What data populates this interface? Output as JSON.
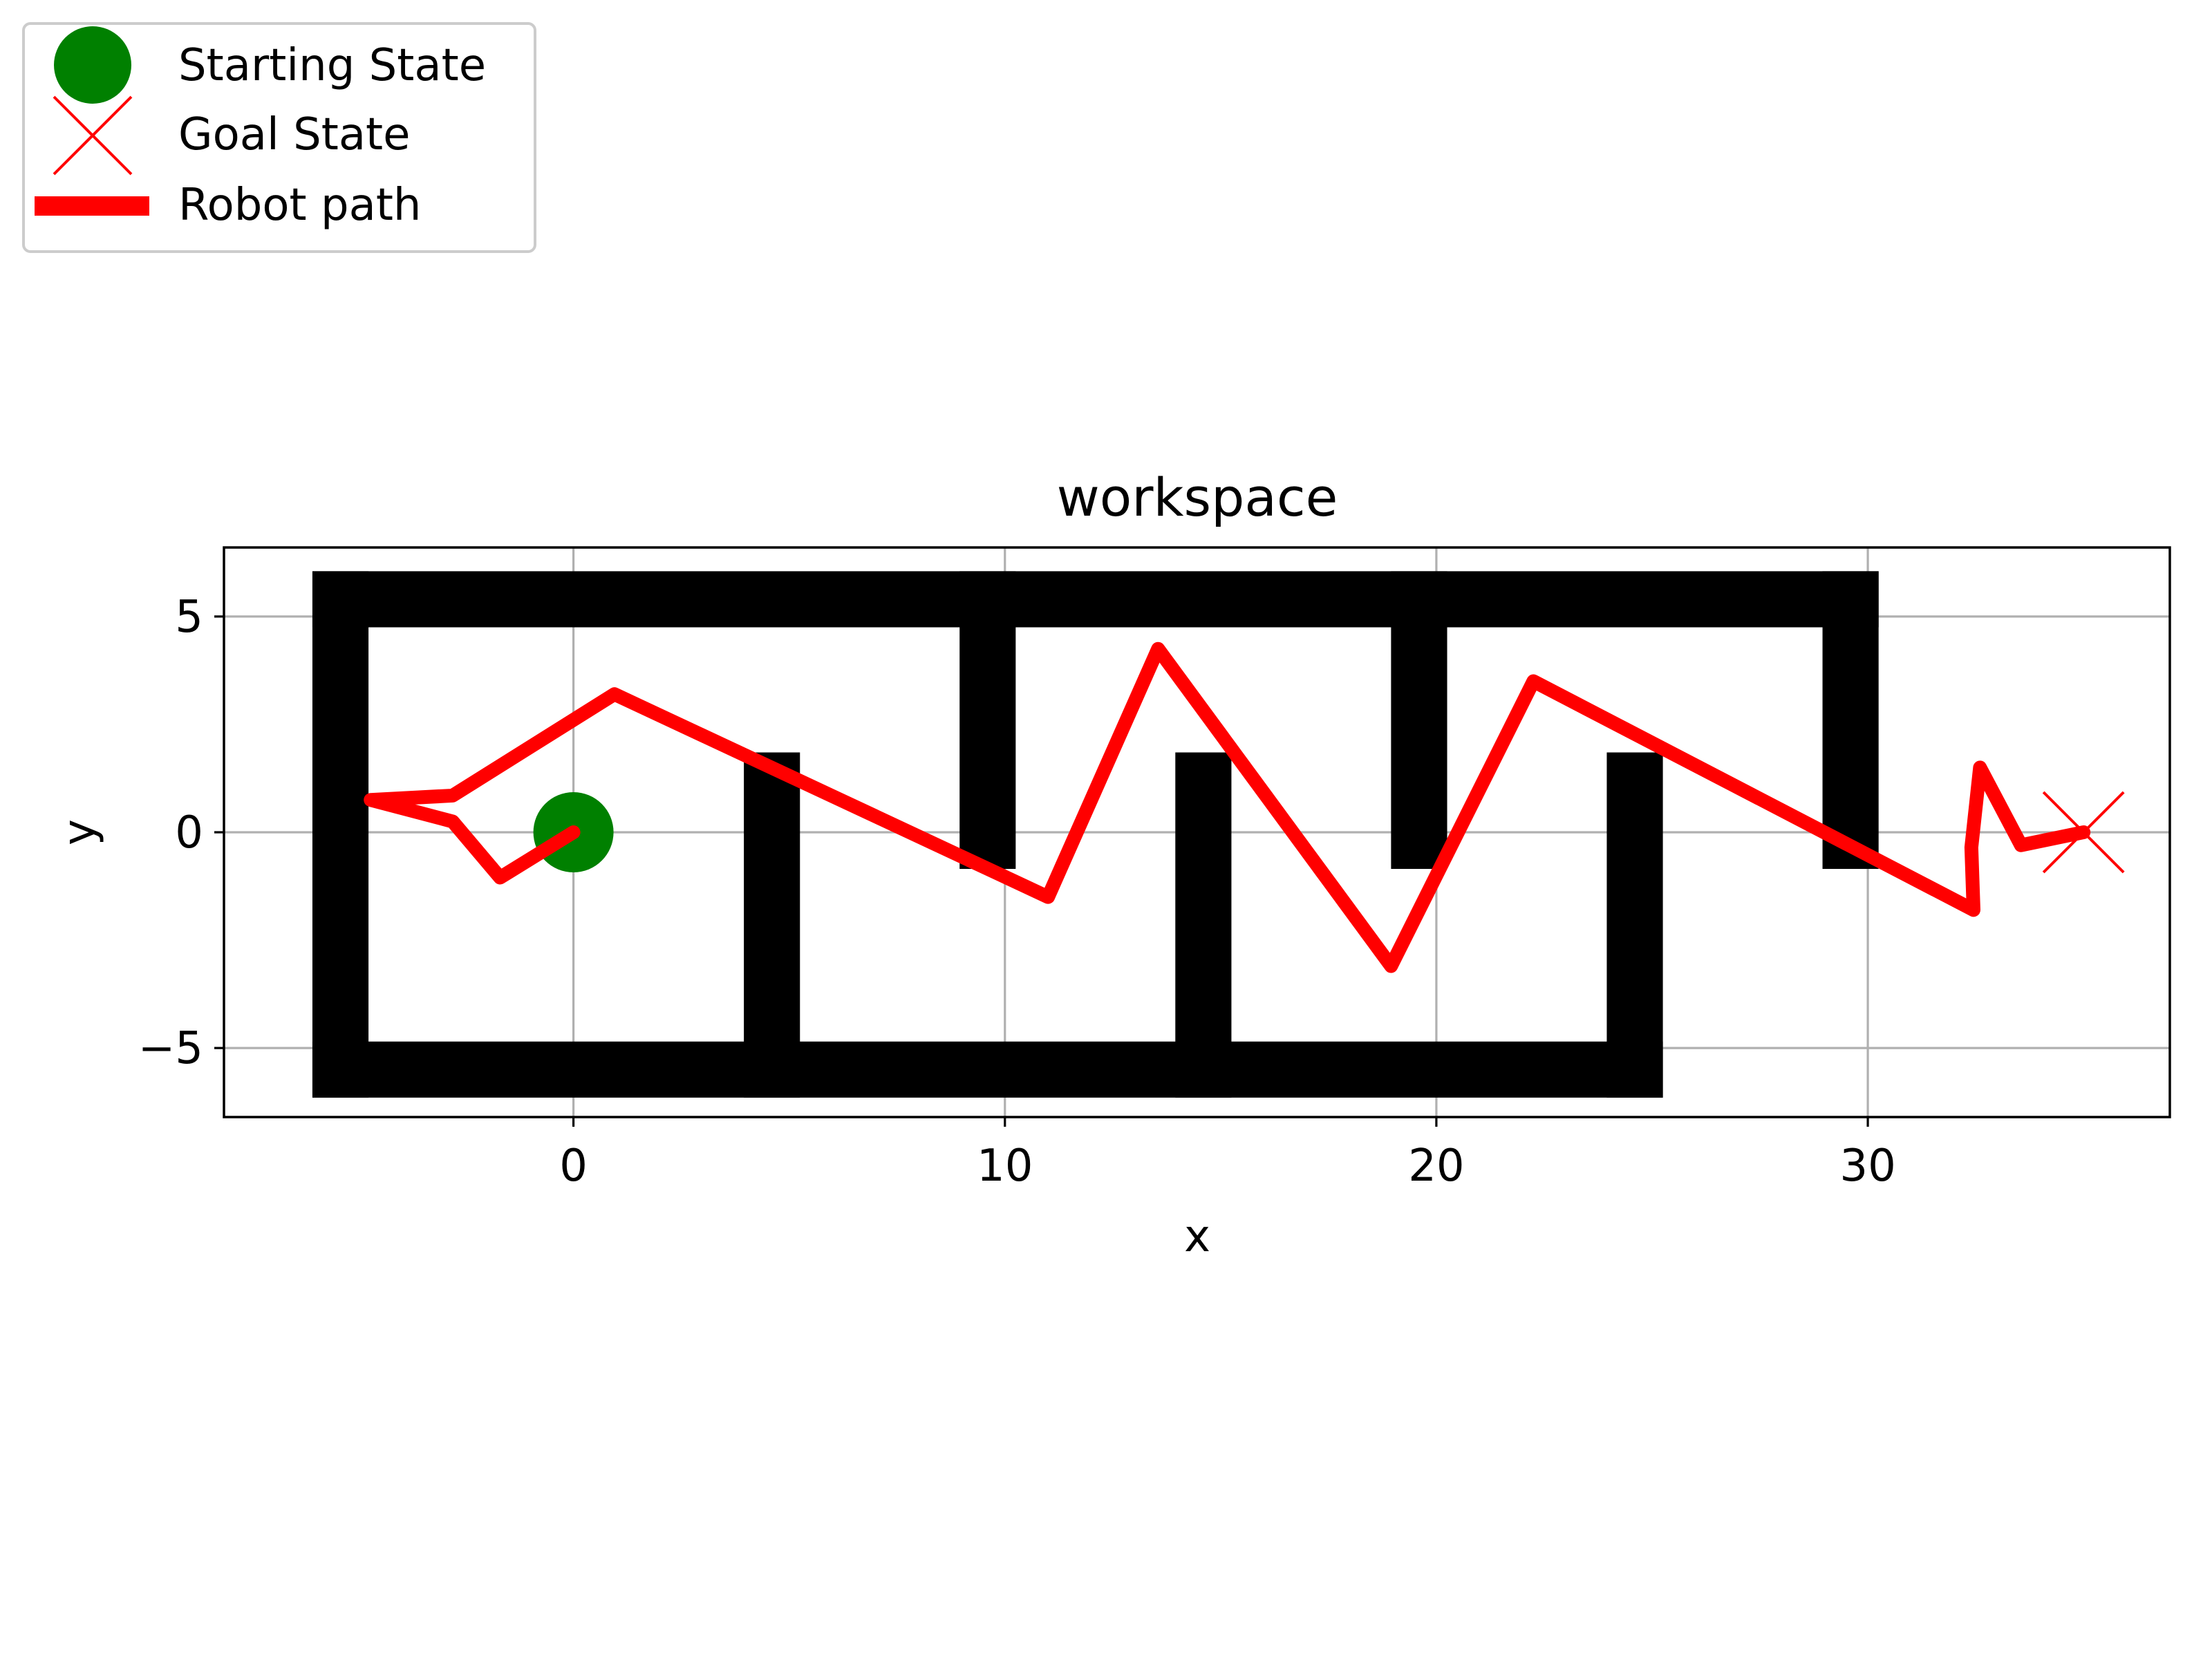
{
  "chart_data": {
    "type": "line",
    "title": "workspace",
    "xlabel": "x",
    "ylabel": "y",
    "xlim": [
      -8.1,
      37.0
    ],
    "ylim": [
      -6.6,
      6.6
    ],
    "aspect": "equal",
    "grid": true,
    "x_ticks": [
      0,
      10,
      20,
      30
    ],
    "y_ticks": [
      -5,
      0,
      5
    ],
    "x_tick_labels": [
      "0",
      "10",
      "20",
      "30"
    ],
    "y_tick_labels": [
      "−5",
      "0",
      "5"
    ],
    "legend": {
      "placement": "upper-left-outside",
      "entries": [
        {
          "label": "Starting State",
          "marker": "circle",
          "color": "#008000"
        },
        {
          "label": "Goal State",
          "marker": "x",
          "color": "#ff0000"
        },
        {
          "label": "Robot path",
          "marker": "line",
          "color": "#ff0000"
        }
      ]
    },
    "start": {
      "x": 0,
      "y": 0,
      "color": "#008000"
    },
    "goal": {
      "x": 35,
      "y": 0,
      "color": "#ff0000"
    },
    "path": {
      "color": "#ff0000",
      "points": [
        [
          0,
          0
        ],
        [
          -1.7,
          -1.05
        ],
        [
          -2.8,
          0.25
        ],
        [
          -4.7,
          0.75
        ],
        [
          -2.8,
          0.85
        ],
        [
          0.95,
          3.2
        ],
        [
          11.0,
          -1.5
        ],
        [
          13.55,
          4.25
        ],
        [
          18.95,
          -3.1
        ],
        [
          22.25,
          3.5
        ],
        [
          32.45,
          -1.8
        ],
        [
          32.4,
          -0.35
        ],
        [
          32.6,
          1.5
        ],
        [
          33.55,
          -0.3
        ],
        [
          35,
          0
        ]
      ]
    },
    "obstacles": {
      "color": "#000000",
      "segments": [
        [
          [
            -5.4,
            5.4
          ],
          [
            29.6,
            5.4
          ]
        ],
        [
          [
            -5.4,
            -5.5
          ],
          [
            24.6,
            -5.5
          ]
        ],
        [
          [
            -5.4,
            -5.5
          ],
          [
            -5.4,
            5.4
          ]
        ],
        [
          [
            4.6,
            -5.5
          ],
          [
            4.6,
            1.2
          ]
        ],
        [
          [
            9.6,
            5.4
          ],
          [
            9.6,
            -0.2
          ]
        ],
        [
          [
            14.6,
            -5.5
          ],
          [
            14.6,
            1.2
          ]
        ],
        [
          [
            19.6,
            5.4
          ],
          [
            19.6,
            -0.2
          ]
        ],
        [
          [
            24.6,
            -5.5
          ],
          [
            24.6,
            1.2
          ]
        ],
        [
          [
            29.6,
            5.4
          ],
          [
            29.6,
            -0.2
          ]
        ]
      ]
    }
  }
}
